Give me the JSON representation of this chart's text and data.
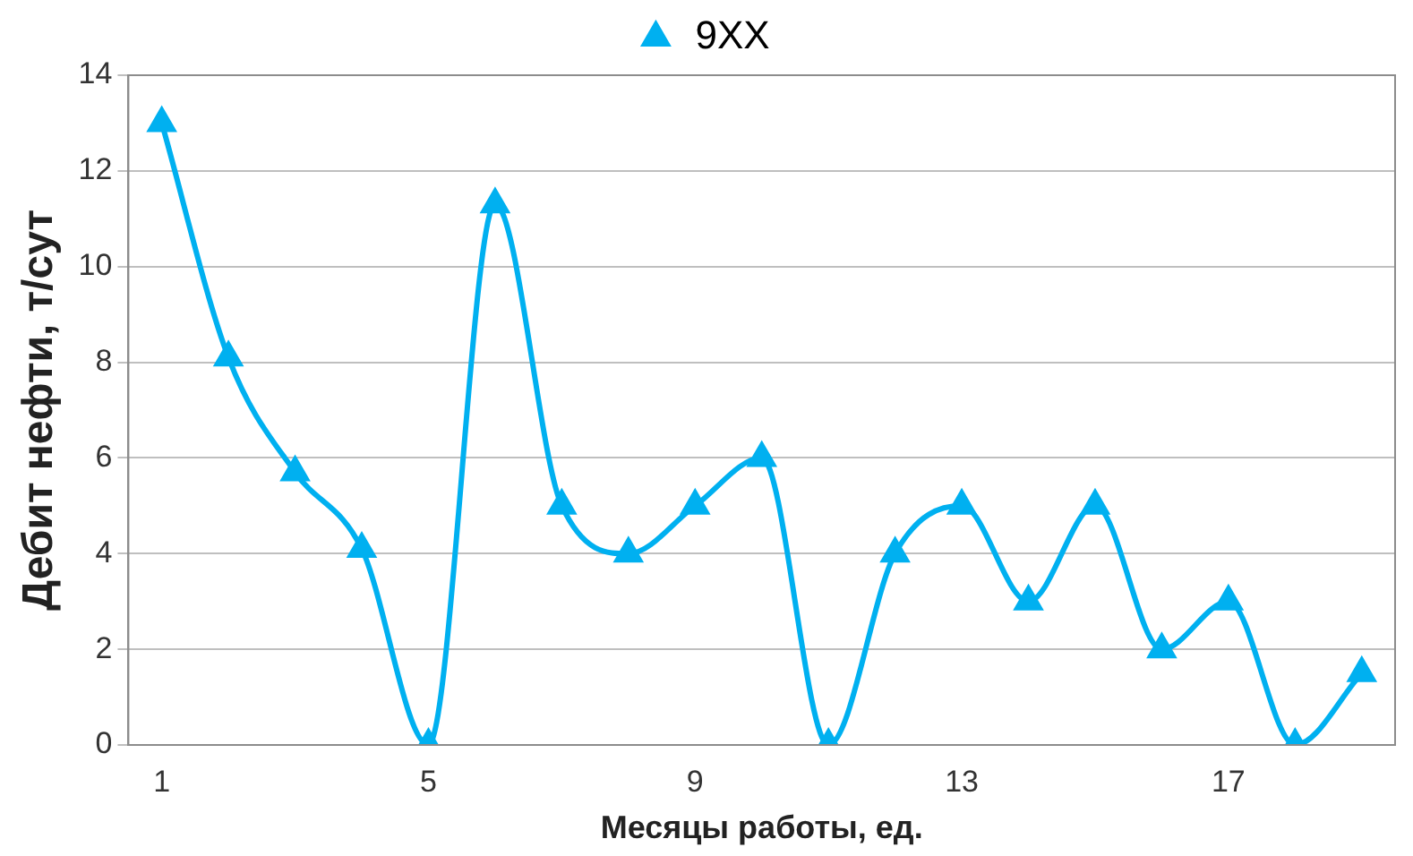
{
  "chart_data": {
    "type": "line",
    "xlabel": "Месяцы работы, ед.",
    "ylabel": "Дебит нефти, т/сут",
    "categories": [
      "1",
      null,
      null,
      null,
      "5",
      null,
      null,
      null,
      "9",
      null,
      null,
      null,
      "13",
      null,
      null,
      null,
      "17",
      null,
      null
    ],
    "series": [
      {
        "name": "9XX",
        "color": "#00b0f0",
        "values": [
          13,
          8.1,
          5.7,
          4.1,
          0,
          11.3,
          5,
          4,
          5,
          6,
          0,
          4,
          5,
          3,
          5,
          2,
          3,
          0,
          1.5
        ]
      }
    ],
    "ylim": [
      0,
      14
    ],
    "yticks": [
      0,
      2,
      4,
      6,
      8,
      10,
      12,
      14
    ],
    "grid": "y",
    "legend": "top",
    "marker": "triangle",
    "line_style": "solid"
  }
}
